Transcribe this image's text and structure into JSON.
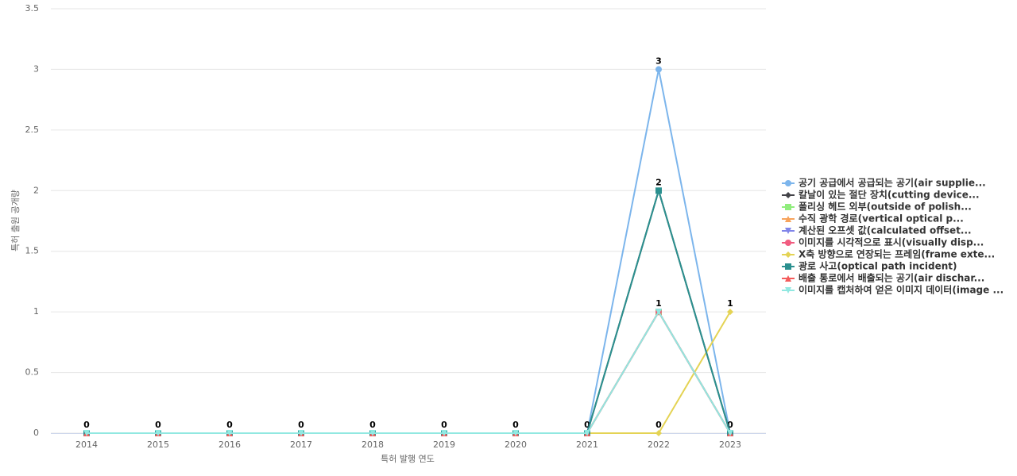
{
  "chart_data": {
    "type": "line",
    "x_label": "특허 발행 연도",
    "y_label": "특허 출원 공개량",
    "categories": [
      "2014",
      "2015",
      "2016",
      "2017",
      "2018",
      "2019",
      "2020",
      "2021",
      "2022",
      "2023"
    ],
    "ylim": [
      0,
      3.5
    ],
    "yticks": [
      0,
      0.5,
      1,
      1.5,
      2,
      2.5,
      3,
      3.5
    ],
    "grid": true,
    "legend": "right",
    "series": [
      {
        "name": "공기 공급에서 공급되는 공기(air supplie...",
        "color": "#7cb5ec",
        "values": [
          0,
          0,
          0,
          0,
          0,
          0,
          0,
          0,
          3,
          0
        ]
      },
      {
        "name": "칼날이 있는 절단 장치(cutting device...",
        "color": "#434348",
        "values": [
          0,
          0,
          0,
          0,
          0,
          0,
          0,
          0,
          2,
          0
        ]
      },
      {
        "name": "폴리싱 헤드 외부(outside of polish...",
        "color": "#90ed7d",
        "values": [
          0,
          0,
          0,
          0,
          0,
          0,
          0,
          0,
          1,
          0
        ]
      },
      {
        "name": "수직 광학 경로(vertical optical p...",
        "color": "#f7a35c",
        "values": [
          0,
          0,
          0,
          0,
          0,
          0,
          0,
          0,
          1,
          0
        ]
      },
      {
        "name": "계산된 오프셋 값(calculated offset...",
        "color": "#8085e9",
        "values": [
          0,
          0,
          0,
          0,
          0,
          0,
          0,
          0,
          1,
          0
        ]
      },
      {
        "name": "이미지를 시각적으로 표시(visually disp...",
        "color": "#f15c80",
        "values": [
          0,
          0,
          0,
          0,
          0,
          0,
          0,
          0,
          1,
          0
        ]
      },
      {
        "name": "X축 방향으로 연장되는 프레임(frame exte...",
        "color": "#e4d354",
        "values": [
          0,
          0,
          0,
          0,
          0,
          0,
          0,
          0,
          0,
          1
        ]
      },
      {
        "name": "광로 사고(optical path incident)",
        "color": "#2b908f",
        "values": [
          0,
          0,
          0,
          0,
          0,
          0,
          0,
          0,
          2,
          0
        ]
      },
      {
        "name": "배출 통로에서 배출되는 공기(air dischar...",
        "color": "#f45b5b",
        "values": [
          0,
          0,
          0,
          0,
          0,
          0,
          0,
          0,
          1,
          0
        ]
      },
      {
        "name": "이미지를 캡처하여 얻은 이미지 데이터(image ...",
        "color": "#91e8e1",
        "values": [
          0,
          0,
          0,
          0,
          0,
          0,
          0,
          0,
          1,
          0
        ]
      }
    ]
  }
}
